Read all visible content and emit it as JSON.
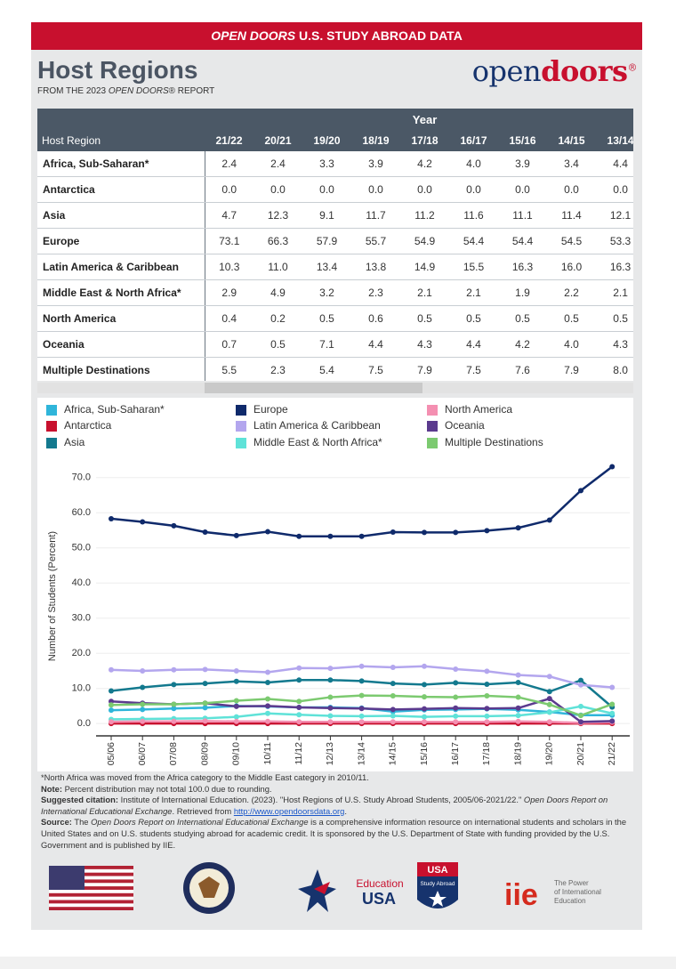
{
  "banner": {
    "italic": "OPEN DOORS",
    "rest": "U.S. STUDY ABROAD DATA"
  },
  "header": {
    "title": "Host Regions",
    "subtitle_prefix": "FROM THE 2023",
    "subtitle_italic": "OPEN DOORS",
    "subtitle_suffix": "® REPORT",
    "brand_open": "open",
    "brand_doors": "doors",
    "brand_mark": "®"
  },
  "table": {
    "year_label": "Year",
    "columns": [
      "Host Region",
      "21/22",
      "20/21",
      "19/20",
      "18/19",
      "17/18",
      "16/17",
      "15/16",
      "14/15",
      "13/14"
    ],
    "rows": [
      [
        "Africa, Sub-Saharan*",
        "2.4",
        "2.4",
        "3.3",
        "3.9",
        "4.2",
        "4.0",
        "3.9",
        "3.4",
        "4.4"
      ],
      [
        "Antarctica",
        "0.0",
        "0.0",
        "0.0",
        "0.0",
        "0.0",
        "0.0",
        "0.0",
        "0.0",
        "0.0"
      ],
      [
        "Asia",
        "4.7",
        "12.3",
        "9.1",
        "11.7",
        "11.2",
        "11.6",
        "11.1",
        "11.4",
        "12.1"
      ],
      [
        "Europe",
        "73.1",
        "66.3",
        "57.9",
        "55.7",
        "54.9",
        "54.4",
        "54.4",
        "54.5",
        "53.3"
      ],
      [
        "Latin America & Caribbean",
        "10.3",
        "11.0",
        "13.4",
        "13.8",
        "14.9",
        "15.5",
        "16.3",
        "16.0",
        "16.3"
      ],
      [
        "Middle East & North Africa*",
        "2.9",
        "4.9",
        "3.2",
        "2.3",
        "2.1",
        "2.1",
        "1.9",
        "2.2",
        "2.1"
      ],
      [
        "North America",
        "0.4",
        "0.2",
        "0.5",
        "0.6",
        "0.5",
        "0.5",
        "0.5",
        "0.5",
        "0.5"
      ],
      [
        "Oceania",
        "0.7",
        "0.5",
        "7.1",
        "4.4",
        "4.3",
        "4.4",
        "4.2",
        "4.0",
        "4.3"
      ],
      [
        "Multiple Destinations",
        "5.5",
        "2.3",
        "5.4",
        "7.5",
        "7.9",
        "7.5",
        "7.6",
        "7.9",
        "8.0"
      ]
    ]
  },
  "chart_data": {
    "type": "line",
    "y_label": "Number of Students (Percent)",
    "categories": [
      "05/06",
      "06/07",
      "07/08",
      "08/09",
      "09/10",
      "10/11",
      "11/12",
      "12/13",
      "13/14",
      "14/15",
      "15/16",
      "16/17",
      "17/18",
      "18/19",
      "19/20",
      "20/21",
      "21/22"
    ],
    "ylim": [
      -3.5,
      75
    ],
    "yticks": [
      {
        "value": 0,
        "label": "0.0"
      },
      {
        "value": 10,
        "label": "10.0"
      },
      {
        "value": 20,
        "label": "20.0"
      },
      {
        "value": 30,
        "label": "30.0"
      },
      {
        "value": 40,
        "label": "40.0"
      },
      {
        "value": 50,
        "label": "50.0"
      },
      {
        "value": 60,
        "label": "60.0"
      },
      {
        "value": 70,
        "label": "70.0"
      }
    ],
    "grid": true,
    "series": [
      {
        "name": "Africa, Sub-Saharan*",
        "color": "#2fb5da",
        "values": [
          3.8,
          4.0,
          4.3,
          4.5,
          5.0,
          4.9,
          4.6,
          4.6,
          4.4,
          3.4,
          3.9,
          4.0,
          4.2,
          3.9,
          3.3,
          2.4,
          2.4
        ]
      },
      {
        "name": "Antarctica",
        "color": "#c8102e",
        "values": [
          0,
          0,
          0,
          0,
          0,
          0,
          0,
          0,
          0,
          0,
          0,
          0,
          0,
          0,
          0,
          0,
          0
        ]
      },
      {
        "name": "Asia",
        "color": "#13798e",
        "values": [
          9.3,
          10.3,
          11.1,
          11.4,
          12.0,
          11.7,
          12.4,
          12.4,
          12.1,
          11.4,
          11.1,
          11.6,
          11.2,
          11.7,
          9.1,
          12.3,
          4.7
        ]
      },
      {
        "name": "Europe",
        "color": "#0f2a6b",
        "values": [
          58.3,
          57.4,
          56.3,
          54.5,
          53.5,
          54.6,
          53.3,
          53.3,
          53.3,
          54.5,
          54.4,
          54.4,
          54.9,
          55.7,
          57.9,
          66.3,
          73.1
        ]
      },
      {
        "name": "Latin America & Caribbean",
        "color": "#b3a6ee",
        "values": [
          15.3,
          15.0,
          15.3,
          15.4,
          15.0,
          14.6,
          15.8,
          15.7,
          16.3,
          16.0,
          16.3,
          15.5,
          14.9,
          13.8,
          13.4,
          11.0,
          10.3
        ]
      },
      {
        "name": "Middle East & North Africa*",
        "color": "#5fe2d8",
        "values": [
          1.2,
          1.3,
          1.4,
          1.5,
          1.9,
          2.9,
          2.5,
          2.2,
          2.1,
          2.2,
          1.9,
          2.1,
          2.1,
          2.3,
          3.2,
          4.9,
          2.9
        ]
      },
      {
        "name": "North America",
        "color": "#f48fb1",
        "values": [
          0.5,
          0.6,
          0.6,
          0.7,
          0.6,
          0.6,
          0.5,
          0.5,
          0.5,
          0.5,
          0.5,
          0.5,
          0.5,
          0.6,
          0.5,
          0.2,
          0.4
        ]
      },
      {
        "name": "Oceania",
        "color": "#5b3a8e",
        "values": [
          6.3,
          5.8,
          5.5,
          5.8,
          4.9,
          5.0,
          4.6,
          4.4,
          4.3,
          4.0,
          4.2,
          4.4,
          4.3,
          4.4,
          7.1,
          0.5,
          0.7
        ]
      },
      {
        "name": "Multiple Destinations",
        "color": "#7cca70",
        "values": [
          5.3,
          5.5,
          5.5,
          5.8,
          6.5,
          7.0,
          6.3,
          7.5,
          8.0,
          7.9,
          7.6,
          7.5,
          7.9,
          7.5,
          5.4,
          2.3,
          5.5
        ]
      }
    ]
  },
  "footer": {
    "footnote": "*North Africa was moved from the Africa category to the Middle East category in 2010/11.",
    "note_label": "Note:",
    "note": "Percent distribution may not total 100.0 due to rounding.",
    "citation_label": "Suggested citation:",
    "citation": "Institute of International Education. (2023). \"Host Regions of U.S. Study Abroad Students, 2005/06-2021/22.\"",
    "citation_italic": "Open Doors Report on International Educational Exchange",
    "citation_retrieved": ". Retrieved from",
    "citation_link": "http://www.opendoorsdata.org",
    "citation_end": ".",
    "source_label": "Source:",
    "source_the": "The",
    "source_italic": "Open Doors Report on International Educational Exchange",
    "source": "is a comprehensive information resource on international students and scholars in the United States and on U.S. students studying abroad for academic credit. It is sponsored by the U.S. Department of State with funding provided by the U.S. Government and is published by IIE."
  },
  "logos": {
    "edu_1": "Education",
    "edu_2": "USA",
    "sa_1": "USA",
    "sa_2": "Study Abroad",
    "iie": "iie",
    "iie_1": "The Power",
    "iie_2": "of International",
    "iie_3": "Education"
  }
}
